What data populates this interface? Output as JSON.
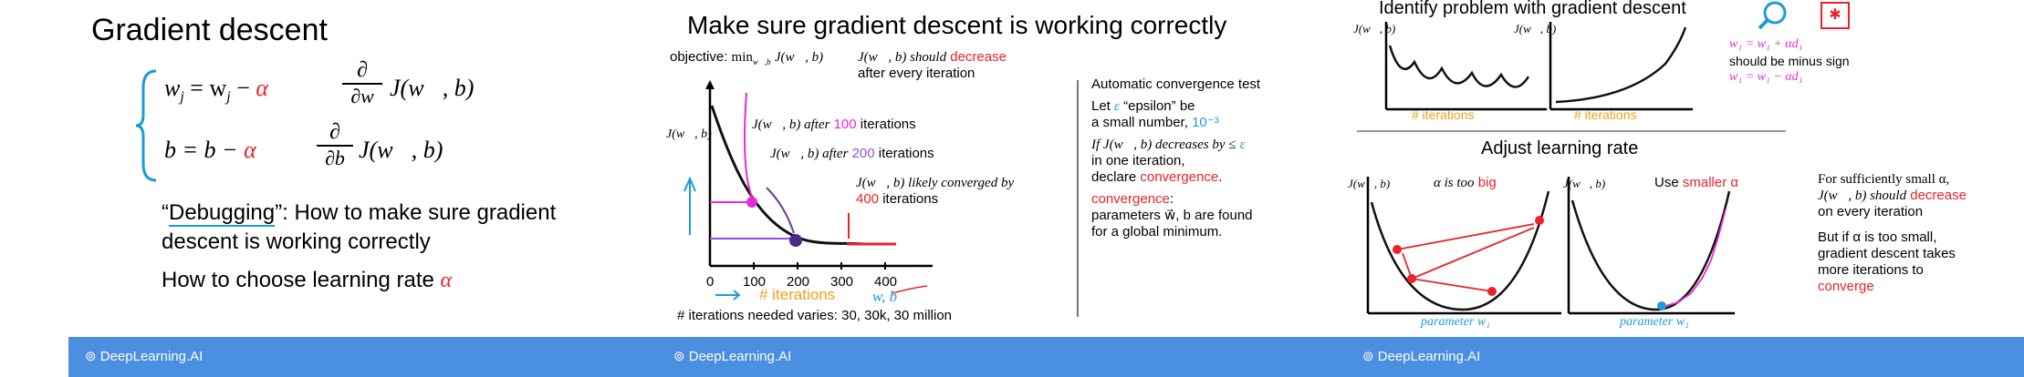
{
  "slide1": {
    "title": "Gradient descent",
    "eq_w_lhs": "w",
    "eq_w_sub": "j",
    "eq_w_rhs_pre": " = w",
    "eq_w_sub2": "j",
    "alpha": "α",
    "partial": "∂",
    "partial_wj": "∂w",
    "partial_b": "∂b",
    "J_text": "J(w⃗, b)",
    "eq_b_lhs": "b = b − ",
    "debug_quote_open": "“",
    "debug_word": "Debugging",
    "debug_rest": "”: How to make sure gradient",
    "debug_line2": "descent is working correctly",
    "choose_lr": "How to choose learning rate",
    "logo": "DeepLearning.AI"
  },
  "slide2": {
    "title": "Make sure gradient descent is working correctly",
    "objective_label": "objective:",
    "objective_min": "min",
    "objective_sub": "w⃗,b",
    "objective_J": "J(w⃗, b)",
    "should_decrease_pre": "J(w⃗, b) should",
    "decrease_word": "decrease",
    "after_every": "after every iteration",
    "y_axis_label": "J(w⃗, b)",
    "after_100_pre": "J(w⃗, b) after",
    "after_100_num": "100",
    "after_100_post": "iterations",
    "after_200_pre": "J(w⃗, b) after",
    "after_200_num": "200",
    "after_200_post": "iterations",
    "likely_line1": "J(w⃗, b) likely converged by",
    "likely_num": "400",
    "likely_post": "iterations",
    "x_label": "# iterations",
    "wb_note": "w, b",
    "needed_varies": "# iterations needed varies: 30, 30k, 30 million",
    "auto_test_title": "Automatic convergence test",
    "let_eps_pre": "Let",
    "eps": "ε",
    "let_eps_post": "“epsilon” be",
    "small_number_pre": "a small number,",
    "small_number_val": "10⁻³",
    "if_line1": "If J(w⃗, b) decreases by ≤",
    "if_line2": "in one iteration,",
    "declare_pre": "declare",
    "declare_word": "convergence",
    "conv_label": "convergence",
    "params_line": "parameters w⃗, b are found",
    "global_line": "for a global minimum.",
    "logo": "DeepLearning.AI"
  },
  "slide3": {
    "identify_title": "Identify problem with gradient descent",
    "j_label": "J(w⃗, b)",
    "x_label": "# iterations",
    "fix_eq1": "w₁ = w₁ + αd₁",
    "minus_sign": "should be minus sign",
    "fix_eq2": "w₁ = w₁ − αd₁",
    "adjust_title": "Adjust learning rate",
    "alpha_big_pre": "α is too",
    "alpha_big_word": "big",
    "use_smaller_pre": "Use",
    "use_smaller_word": "smaller α",
    "param_label": "parameter w₁",
    "suff_small_line1": "For sufficiently small α,",
    "suff_small_line2": "J(w⃗, b) should",
    "suff_small_decrease": "decrease",
    "suff_small_line3": "on every iteration",
    "but_line1": "But if α is too small,",
    "but_line2": "gradient descent takes",
    "but_line3": "more iterations to",
    "converge_word": "converge",
    "logo": "DeepLearning.AI"
  },
  "colors": {
    "accent_red": "#e8232a",
    "accent_blue": "#1f9ad6",
    "footer_blue": "#4a8fe0",
    "purple": "#9b4fd1",
    "orange": "#f0a11c",
    "magenta": "#e52bd6"
  }
}
